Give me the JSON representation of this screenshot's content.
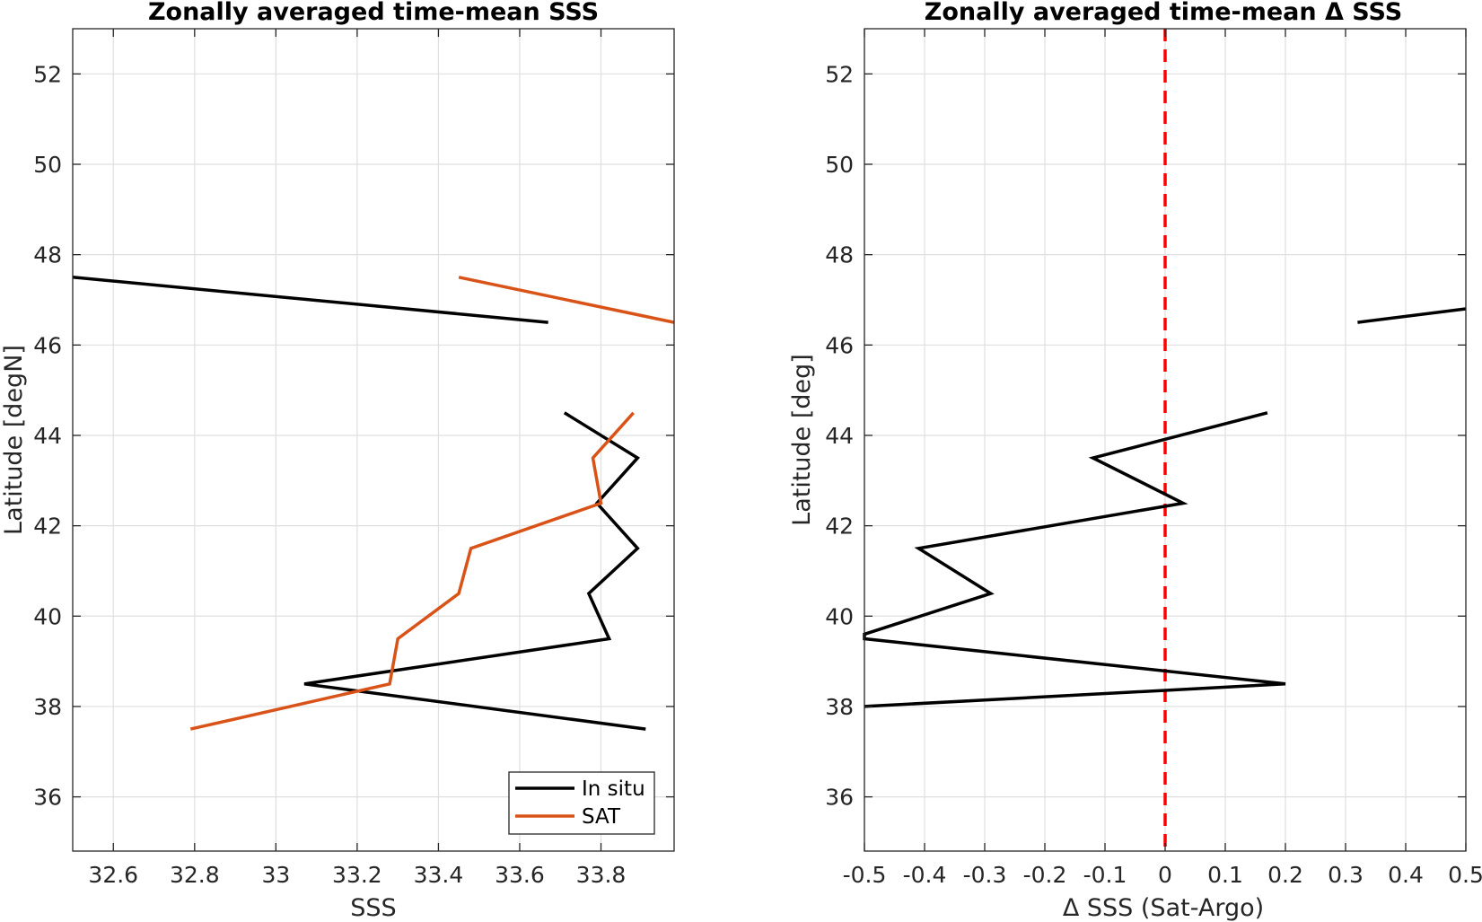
{
  "chart_data": [
    {
      "type": "line",
      "title": "Zonally averaged time-mean SSS",
      "xlabel": "SSS",
      "ylabel": "Latitude [degN]",
      "xlim": [
        32.5,
        33.98
      ],
      "ylim": [
        34.8,
        53
      ],
      "xticks": [
        32.6,
        32.8,
        33.0,
        33.2,
        33.4,
        33.6,
        33.8
      ],
      "xtick_labels": [
        "32.6",
        "32.8",
        "33",
        "33.2",
        "33.4",
        "33.6",
        "33.8"
      ],
      "yticks": [
        36,
        38,
        40,
        42,
        44,
        46,
        48,
        50,
        52
      ],
      "ytick_labels": [
        "36",
        "38",
        "40",
        "42",
        "44",
        "46",
        "48",
        "50",
        "52"
      ],
      "grid": true,
      "legend_position": "bottom-right",
      "series": [
        {
          "name": "In situ",
          "color": "#000000",
          "segments": [
            [
              [
                32.5,
                47.5
              ],
              [
                33.67,
                46.5
              ]
            ],
            [
              [
                33.71,
                44.5
              ],
              [
                33.89,
                43.5
              ],
              [
                33.79,
                42.5
              ],
              [
                33.89,
                41.5
              ],
              [
                33.77,
                40.5
              ],
              [
                33.82,
                39.5
              ],
              [
                33.07,
                38.5
              ],
              [
                33.91,
                37.5
              ]
            ]
          ]
        },
        {
          "name": "SAT",
          "color": "#d95319",
          "segments": [
            [
              [
                33.45,
                47.5
              ],
              [
                33.98,
                46.5
              ]
            ],
            [
              [
                33.88,
                44.5
              ],
              [
                33.78,
                43.5
              ],
              [
                33.8,
                42.5
              ],
              [
                33.48,
                41.5
              ],
              [
                33.45,
                40.5
              ],
              [
                33.3,
                39.5
              ],
              [
                33.28,
                38.5
              ],
              [
                32.79,
                37.5
              ]
            ]
          ]
        }
      ]
    },
    {
      "type": "line",
      "title": "Zonally averaged time-mean Δ SSS",
      "xlabel": "Δ SSS (Sat-Argo)",
      "ylabel": "Latitude [deg]",
      "xlim": [
        -0.5,
        0.5
      ],
      "ylim": [
        34.8,
        53
      ],
      "xticks": [
        -0.5,
        -0.4,
        -0.3,
        -0.2,
        -0.1,
        0,
        0.1,
        0.2,
        0.3,
        0.4,
        0.5
      ],
      "xtick_labels": [
        "-0.5",
        "-0.4",
        "-0.3",
        "-0.2",
        "-0.1",
        "0",
        "0.1",
        "0.2",
        "0.3",
        "0.4",
        "0.5"
      ],
      "yticks": [
        36,
        38,
        40,
        42,
        44,
        46,
        48,
        50,
        52
      ],
      "ytick_labels": [
        "36",
        "38",
        "40",
        "42",
        "44",
        "46",
        "48",
        "50",
        "52"
      ],
      "grid": true,
      "series": [
        {
          "color": "#000000",
          "segments": [
            [
              [
                0.32,
                46.5
              ],
              [
                0.5,
                46.8
              ]
            ],
            [
              [
                0.17,
                44.5
              ],
              [
                -0.12,
                43.5
              ],
              [
                0.03,
                42.5
              ],
              [
                -0.41,
                41.5
              ],
              [
                -0.29,
                40.5
              ],
              [
                -0.5,
                39.6
              ],
              [
                -0.5,
                39.5
              ],
              [
                0.2,
                38.5
              ],
              [
                -0.5,
                38
              ]
            ]
          ]
        }
      ],
      "reference_line": {
        "x": 0,
        "color": "#ff0000",
        "style": "dashed"
      }
    }
  ]
}
